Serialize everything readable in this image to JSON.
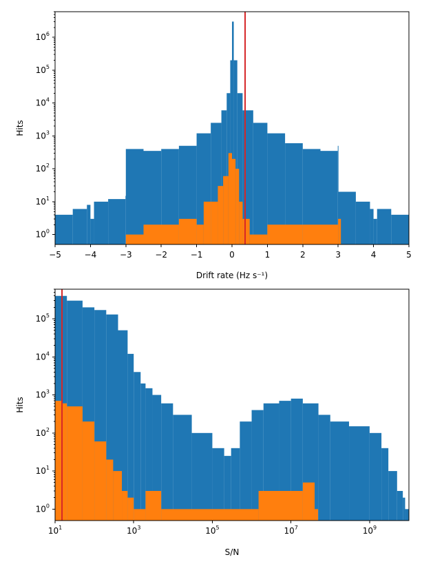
{
  "chart_data": [
    {
      "type": "bar",
      "xlabel": "Drift rate (Hz s⁻¹)",
      "ylabel": "Hits",
      "xlim": [
        -5,
        5
      ],
      "ylim": [
        0.5,
        6000000
      ],
      "y_scale": "log",
      "x_ticks": [
        {
          "value": -5,
          "label": "−5"
        },
        {
          "value": -4,
          "label": "−4"
        },
        {
          "value": -3,
          "label": "−3"
        },
        {
          "value": -2,
          "label": "−2"
        },
        {
          "value": -1,
          "label": "−1"
        },
        {
          "value": 0,
          "label": "0"
        },
        {
          "value": 1,
          "label": "1"
        },
        {
          "value": 2,
          "label": "2"
        },
        {
          "value": 3,
          "label": "3"
        },
        {
          "value": 4,
          "label": "4"
        },
        {
          "value": 5,
          "label": "5"
        }
      ],
      "y_ticks": [
        {
          "value": 1,
          "base": "10",
          "exp": "0"
        },
        {
          "value": 10,
          "base": "10",
          "exp": "1"
        },
        {
          "value": 100,
          "base": "10",
          "exp": "2"
        },
        {
          "value": 1000,
          "base": "10",
          "exp": "3"
        },
        {
          "value": 10000,
          "base": "10",
          "exp": "4"
        },
        {
          "value": 100000,
          "base": "10",
          "exp": "5"
        },
        {
          "value": 1000000,
          "base": "10",
          "exp": "6"
        }
      ],
      "vline": 0.37,
      "series": [
        {
          "values_x": [
            -5,
            -4.5,
            -4.1,
            -4,
            -3.9,
            -3.5,
            -3.01,
            -3,
            -2.5,
            -2,
            -1.5,
            -1,
            -0.6,
            -0.3,
            -0.15,
            -0.05,
            0,
            0.05,
            0.15,
            0.3,
            0.6,
            1,
            1.5,
            2,
            2.5,
            2.99,
            3,
            3.5,
            3.9,
            4,
            4.1,
            4.5,
            5
          ],
          "values": [
            4,
            6,
            8,
            3,
            10,
            12,
            15,
            400,
            350,
            400,
            500,
            1200,
            2500,
            6000,
            20000,
            200000,
            3000000,
            200000,
            20000,
            6000,
            2500,
            1200,
            600,
            400,
            350,
            500,
            20,
            10,
            6,
            3,
            6,
            4,
            4
          ],
          "color": "#1f77b4"
        },
        {
          "values_x": [
            -3,
            -2.5,
            -1.5,
            -1,
            -0.8,
            -0.6,
            -0.4,
            -0.25,
            -0.1,
            0,
            0.1,
            0.2,
            0.3,
            0.5,
            1,
            2,
            3
          ],
          "values": [
            1,
            2,
            3,
            2,
            10,
            10,
            30,
            60,
            300,
            200,
            100,
            10,
            3,
            1,
            2,
            2,
            3
          ],
          "color": "#ff7f0e"
        }
      ]
    },
    {
      "type": "bar",
      "xlabel": "S/N",
      "ylabel": "Hits",
      "xlim": [
        10,
        10000000000
      ],
      "ylim": [
        0.5,
        600000
      ],
      "x_scale": "log",
      "y_scale": "log",
      "x_ticks": [
        {
          "value": 10,
          "base": "10",
          "exp": "1"
        },
        {
          "value": 1000,
          "base": "10",
          "exp": "3"
        },
        {
          "value": 100000,
          "base": "10",
          "exp": "5"
        },
        {
          "value": 10000000,
          "base": "10",
          "exp": "7"
        },
        {
          "value": 1000000000,
          "base": "10",
          "exp": "9"
        }
      ],
      "y_ticks": [
        {
          "value": 1,
          "base": "10",
          "exp": "0"
        },
        {
          "value": 10,
          "base": "10",
          "exp": "1"
        },
        {
          "value": 100,
          "base": "10",
          "exp": "2"
        },
        {
          "value": 1000,
          "base": "10",
          "exp": "3"
        },
        {
          "value": 10000,
          "base": "10",
          "exp": "4"
        },
        {
          "value": 100000,
          "base": "10",
          "exp": "5"
        }
      ],
      "vline": 15,
      "series": [
        {
          "values_x": [
            10,
            20,
            50,
            100,
            200,
            400,
            700,
            1000,
            1500,
            2000,
            3000,
            5000,
            10000,
            30000,
            100000,
            200000,
            300000,
            500000,
            1000000,
            2000000,
            5000000,
            10000000,
            20000000,
            50000000,
            100000000,
            300000000,
            1000000000,
            2000000000,
            3000000000,
            5000000000,
            7000000000,
            8000000000,
            10000000000
          ],
          "values": [
            400000,
            300000,
            200000,
            170000,
            130000,
            50000,
            12000,
            4000,
            2000,
            1500,
            1000,
            600,
            300,
            100,
            40,
            25,
            40,
            200,
            400,
            600,
            700,
            800,
            600,
            300,
            200,
            150,
            100,
            40,
            10,
            3,
            2,
            1,
            1
          ],
          "color": "#1f77b4"
        },
        {
          "values_x": [
            10,
            15,
            20,
            50,
            100,
            200,
            300,
            500,
            700,
            1000,
            2000,
            5000,
            1500000,
            20000000,
            40000000
          ],
          "values": [
            700,
            600,
            500,
            200,
            60,
            20,
            10,
            3,
            2,
            1,
            3,
            1,
            3,
            5,
            1
          ],
          "color": "#ff7f0e"
        }
      ]
    }
  ]
}
